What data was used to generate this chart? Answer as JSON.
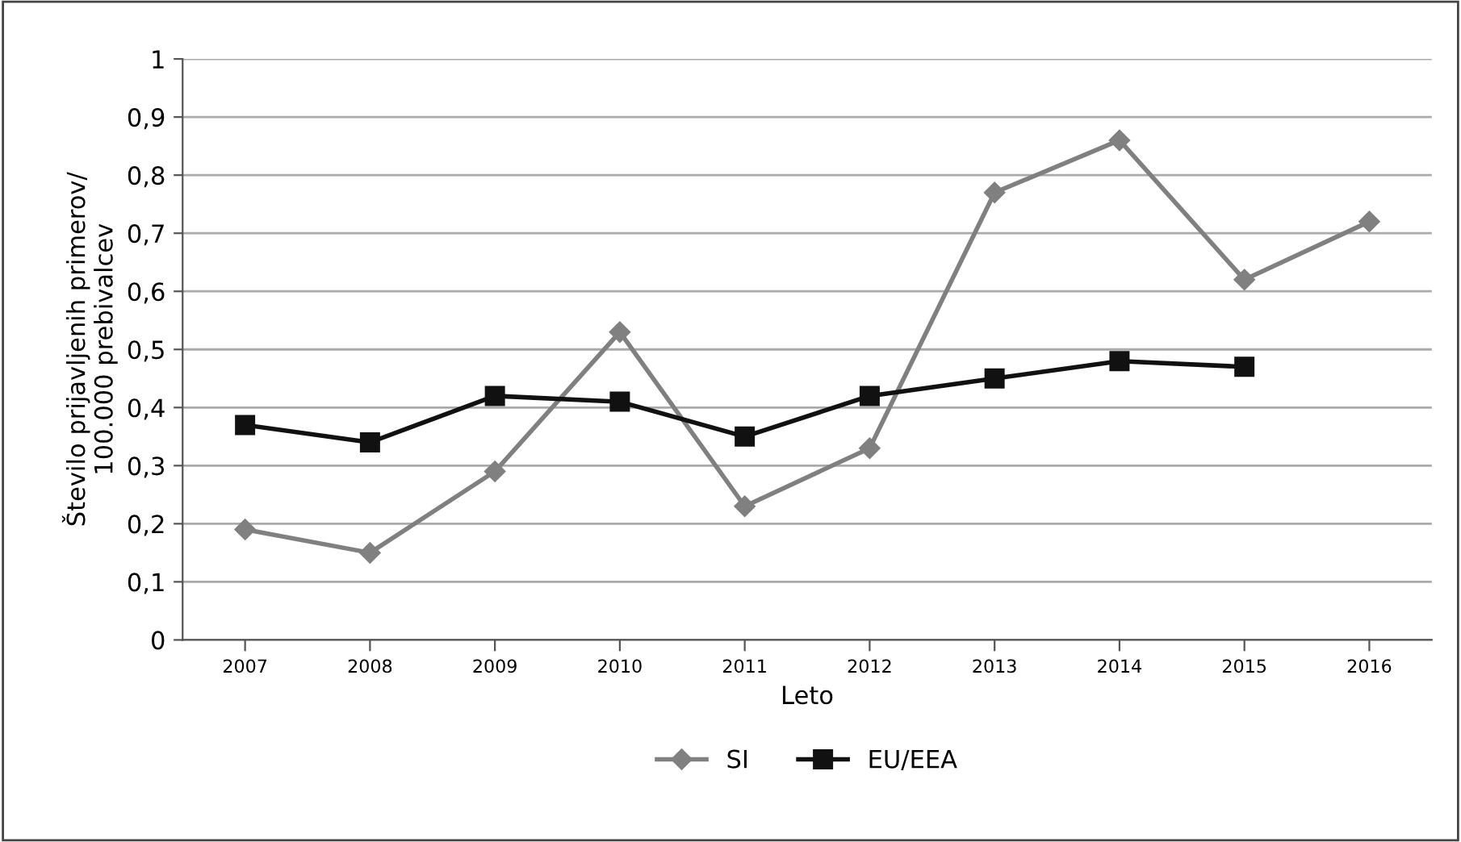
{
  "chart_data": {
    "type": "line",
    "xlabel": "Leto",
    "ylabel": "Število prijavljenih primerov/\n100.000 prebivalcev",
    "categories": [
      "2007",
      "2008",
      "2009",
      "2010",
      "2011",
      "2012",
      "2013",
      "2014",
      "2015",
      "2016"
    ],
    "series": [
      {
        "name": "SI",
        "color": "#808080",
        "marker": "diamond",
        "values": [
          0.19,
          0.15,
          0.29,
          0.53,
          0.23,
          0.33,
          0.77,
          0.86,
          0.62,
          0.72
        ]
      },
      {
        "name": "EU/EEA",
        "color": "#111111",
        "marker": "square",
        "values": [
          0.37,
          0.34,
          0.42,
          0.41,
          0.35,
          0.42,
          0.45,
          0.48,
          0.47,
          null
        ]
      }
    ],
    "ylim": [
      0,
      1
    ],
    "yticks": [
      0,
      {
        "value": 0.1,
        "label": "0,1"
      },
      {
        "value": 0.2,
        "label": "0,2"
      },
      {
        "value": 0.3,
        "label": "0,3"
      },
      {
        "value": 0.4,
        "label": "0,4"
      },
      {
        "value": 0.5,
        "label": "0,5"
      },
      {
        "value": 0.6,
        "label": "0,6"
      },
      {
        "value": 0.7,
        "label": "0,7"
      },
      {
        "value": 0.8,
        "label": "0,8"
      },
      {
        "value": 0.9,
        "label": "0,9"
      },
      1
    ],
    "grid": "y",
    "legend": "bottom"
  }
}
